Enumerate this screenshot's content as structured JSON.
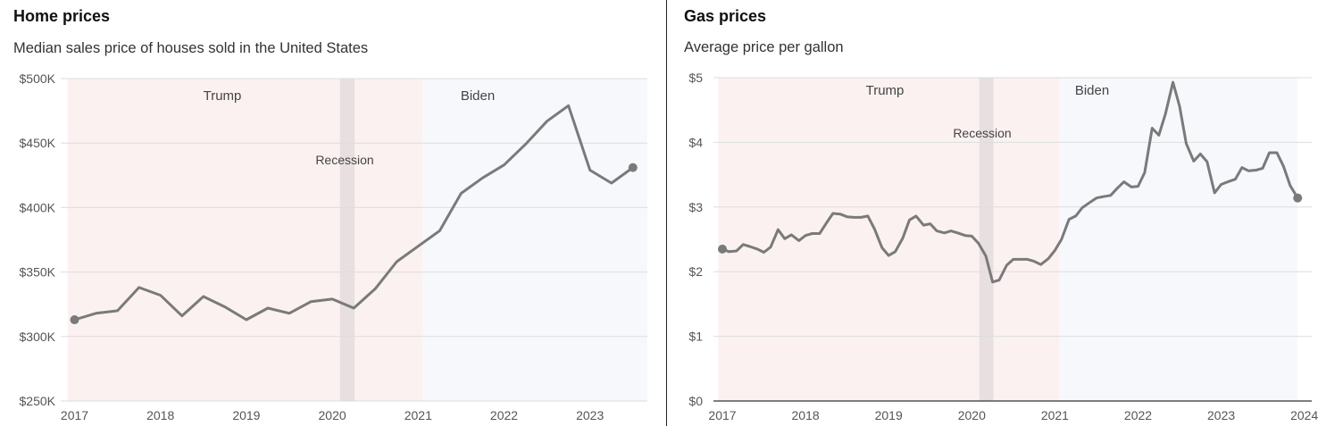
{
  "chart_data": [
    {
      "type": "line",
      "title": "Home prices",
      "subtitle": "Median sales price of houses sold in the United States",
      "xlabel": "",
      "ylabel": "",
      "ylim": [
        250000,
        500000
      ],
      "xlim": [
        2016.92,
        2023.75
      ],
      "y_ticks": [
        {
          "value": 500000,
          "label": "$500K"
        },
        {
          "value": 450000,
          "label": "$450K"
        },
        {
          "value": 400000,
          "label": "$400K"
        },
        {
          "value": 350000,
          "label": "$350K"
        },
        {
          "value": 300000,
          "label": "$300K"
        },
        {
          "value": 250000,
          "label": "$250K"
        }
      ],
      "x_ticks": [
        {
          "value": 2017,
          "label": "2017"
        },
        {
          "value": 2018,
          "label": "2018"
        },
        {
          "value": 2019,
          "label": "2019"
        },
        {
          "value": 2020,
          "label": "2020"
        },
        {
          "value": 2021,
          "label": "2021"
        },
        {
          "value": 2022,
          "label": "2022"
        },
        {
          "value": 2023,
          "label": "2023"
        }
      ],
      "grid": true,
      "line_color": "#7a7a7a",
      "eras": [
        {
          "label": "Trump",
          "start": 2016.92,
          "end": 2021.05,
          "color": "#fcf1f1"
        },
        {
          "label": "Biden",
          "start": 2021.05,
          "end": 2023.75,
          "color": "#f7f8fc"
        }
      ],
      "recession": {
        "label": "Recession",
        "start": 2020.09,
        "end": 2020.26,
        "color": "#e8e0e0"
      },
      "series": [
        {
          "name": "Median sales price",
          "x": [
            2017.0,
            2017.25,
            2017.5,
            2017.75,
            2018.0,
            2018.25,
            2018.5,
            2018.75,
            2019.0,
            2019.25,
            2019.5,
            2019.75,
            2020.0,
            2020.25,
            2020.5,
            2020.75,
            2021.0,
            2021.25,
            2021.5,
            2021.75,
            2022.0,
            2022.25,
            2022.5,
            2022.75,
            2023.0,
            2023.25,
            2023.5
          ],
          "values": [
            313000,
            318000,
            320000,
            338000,
            332000,
            316000,
            331000,
            323000,
            313000,
            322000,
            318000,
            327000,
            329000,
            322000,
            337000,
            358000,
            370000,
            382000,
            411000,
            423000,
            433000,
            449000,
            467000,
            479000,
            429000,
            419000,
            431000
          ]
        }
      ]
    },
    {
      "type": "line",
      "title": "Gas prices",
      "subtitle": "Average price per gallon",
      "xlabel": "",
      "ylabel": "",
      "ylim": [
        0,
        5
      ],
      "xlim": [
        2016.95,
        2024.1
      ],
      "y_ticks": [
        {
          "value": 5,
          "label": "$5"
        },
        {
          "value": 4,
          "label": "$4"
        },
        {
          "value": 3,
          "label": "$3"
        },
        {
          "value": 2,
          "label": "$2"
        },
        {
          "value": 1,
          "label": "$1"
        },
        {
          "value": 0,
          "label": "$0"
        }
      ],
      "x_ticks": [
        {
          "value": 2017,
          "label": "2017"
        },
        {
          "value": 2018,
          "label": "2018"
        },
        {
          "value": 2019,
          "label": "2019"
        },
        {
          "value": 2020,
          "label": "2020"
        },
        {
          "value": 2021,
          "label": "2021"
        },
        {
          "value": 2022,
          "label": "2022"
        },
        {
          "value": 2023,
          "label": "2023"
        },
        {
          "value": 2024,
          "label": "2024"
        }
      ],
      "grid": true,
      "line_color": "#7a7a7a",
      "eras": [
        {
          "label": "Trump",
          "start": 2016.95,
          "end": 2021.05,
          "color": "#fcf1f1"
        },
        {
          "label": "Biden",
          "start": 2021.05,
          "end": 2023.92,
          "color": "#f7f8fc"
        }
      ],
      "recession": {
        "label": "Recession",
        "start": 2020.09,
        "end": 2020.26,
        "color": "#e8e0e0"
      },
      "series": [
        {
          "name": "Average price per gallon",
          "x": [
            2017.0,
            2017.08,
            2017.17,
            2017.25,
            2017.33,
            2017.42,
            2017.5,
            2017.58,
            2017.67,
            2017.75,
            2017.83,
            2017.92,
            2018.0,
            2018.08,
            2018.17,
            2018.25,
            2018.33,
            2018.42,
            2018.5,
            2018.58,
            2018.67,
            2018.75,
            2018.83,
            2018.92,
            2019.0,
            2019.08,
            2019.17,
            2019.25,
            2019.33,
            2019.42,
            2019.5,
            2019.58,
            2019.67,
            2019.75,
            2019.83,
            2019.92,
            2020.0,
            2020.08,
            2020.17,
            2020.25,
            2020.33,
            2020.42,
            2020.5,
            2020.58,
            2020.67,
            2020.75,
            2020.83,
            2020.92,
            2021.0,
            2021.08,
            2021.17,
            2021.25,
            2021.33,
            2021.42,
            2021.5,
            2021.58,
            2021.67,
            2021.75,
            2021.83,
            2021.92,
            2022.0,
            2022.08,
            2022.17,
            2022.25,
            2022.33,
            2022.42,
            2022.5,
            2022.58,
            2022.67,
            2022.75,
            2022.83,
            2022.92,
            2023.0,
            2023.08,
            2023.17,
            2023.25,
            2023.33,
            2023.42,
            2023.5,
            2023.58,
            2023.67,
            2023.75,
            2023.83,
            2023.92
          ],
          "values": [
            2.35,
            2.31,
            2.32,
            2.42,
            2.39,
            2.35,
            2.3,
            2.38,
            2.65,
            2.51,
            2.57,
            2.48,
            2.56,
            2.59,
            2.59,
            2.75,
            2.9,
            2.89,
            2.85,
            2.84,
            2.84,
            2.86,
            2.66,
            2.37,
            2.25,
            2.31,
            2.52,
            2.8,
            2.86,
            2.72,
            2.74,
            2.63,
            2.6,
            2.63,
            2.6,
            2.56,
            2.55,
            2.44,
            2.24,
            1.84,
            1.87,
            2.1,
            2.19,
            2.19,
            2.19,
            2.16,
            2.11,
            2.2,
            2.33,
            2.5,
            2.81,
            2.86,
            2.99,
            3.07,
            3.14,
            3.16,
            3.18,
            3.29,
            3.39,
            3.31,
            3.32,
            3.53,
            4.22,
            4.11,
            4.44,
            4.93,
            4.56,
            3.98,
            3.71,
            3.82,
            3.7,
            3.22,
            3.35,
            3.39,
            3.43,
            3.61,
            3.56,
            3.57,
            3.6,
            3.84,
            3.84,
            3.63,
            3.33,
            3.14
          ]
        }
      ]
    }
  ]
}
